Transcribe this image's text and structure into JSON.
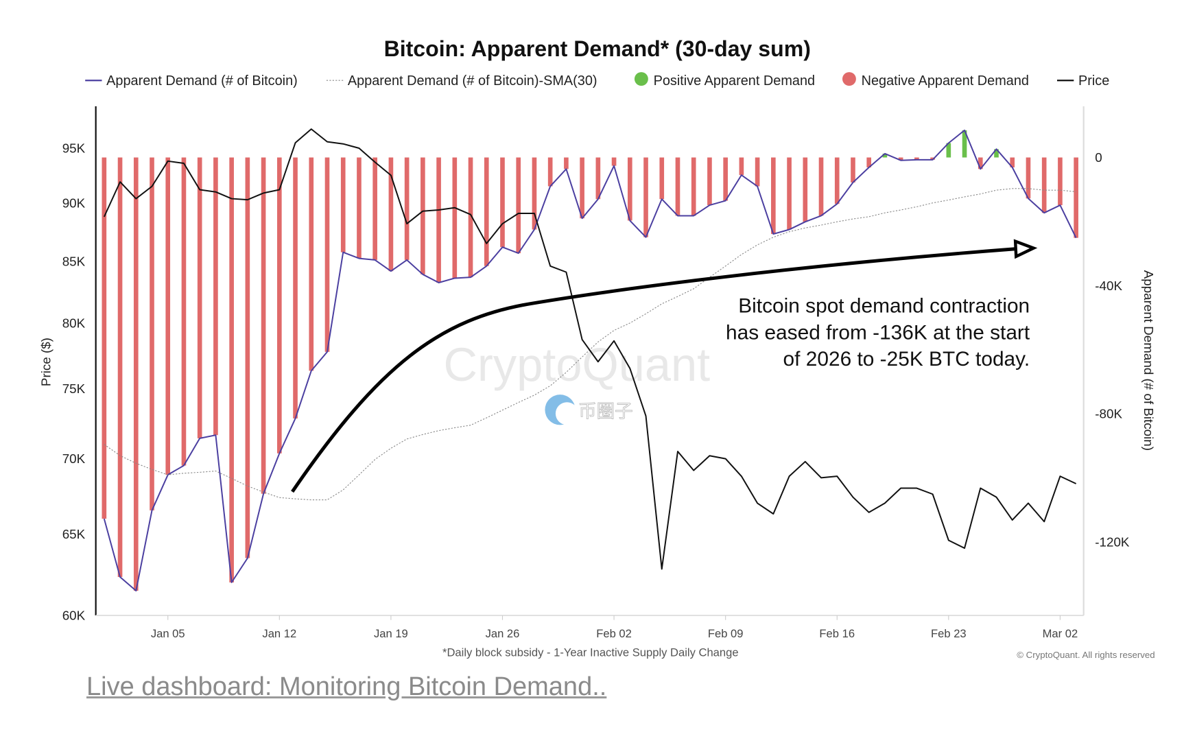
{
  "link": {
    "text": "Live dashboard: Monitoring Bitcoin Demand.."
  },
  "watermark": {
    "brand": "CryptoQuant",
    "overlay": "币圈子"
  },
  "colors": {
    "demand_line": "#4b3fa0",
    "sma": "#888888",
    "positive": "#6abf4b",
    "negative": "#e06a6a",
    "price": "#111111"
  },
  "chart_data": {
    "type": "bar+line",
    "title": "Bitcoin: Apparent Demand* (30-day sum)",
    "footnote": "*Daily block subsidy - 1-Year Inactive Supply Daily Change",
    "copyright": "© CryptoQuant. All rights reserved",
    "annotation": [
      "Bitcoin spot  demand contraction",
      "has eased from -136K at the start",
      "of 2026 to -25K BTC today."
    ],
    "legend": [
      {
        "label": "Apparent Demand (# of Bitcoin)",
        "marker": "line"
      },
      {
        "label": "Apparent Demand (# of Bitcoin)-SMA(30)",
        "marker": "dotted-line"
      },
      {
        "label": "Positive Apparent Demand",
        "marker": "dot"
      },
      {
        "label": "Negative Apparent Demand",
        "marker": "dot"
      },
      {
        "label": "Price",
        "marker": "line"
      }
    ],
    "legend_position": "top",
    "ylabel_left": "Price ($)",
    "ylabel_right": "Apparent Demand (# of Bitcoin)",
    "y_left": {
      "scale": "log",
      "range": [
        60000,
        99000
      ],
      "ticks": [
        60000,
        65000,
        70000,
        75000,
        80000,
        85000,
        90000,
        95000
      ],
      "tick_labels": [
        "60K",
        "65K",
        "70K",
        "75K",
        "80K",
        "85K",
        "90K",
        "95K"
      ]
    },
    "y_right": {
      "scale": "linear",
      "range": [
        -143000,
        16000
      ],
      "ticks": [
        0,
        -40000,
        -80000,
        -120000
      ],
      "tick_labels": [
        "0",
        "-40K",
        "-80K",
        "-120K"
      ]
    },
    "x_ticks": [
      {
        "date": "2026-01-05",
        "label": "Jan 05"
      },
      {
        "date": "2026-01-12",
        "label": "Jan 12"
      },
      {
        "date": "2026-01-19",
        "label": "Jan 19"
      },
      {
        "date": "2026-01-26",
        "label": "Jan 26"
      },
      {
        "date": "2026-02-02",
        "label": "Feb 02"
      },
      {
        "date": "2026-02-09",
        "label": "Feb 09"
      },
      {
        "date": "2026-02-16",
        "label": "Feb 16"
      },
      {
        "date": "2026-02-23",
        "label": "Feb 23"
      },
      {
        "date": "2026-03-02",
        "label": "Mar 02"
      }
    ],
    "x": [
      "2026-01-01",
      "2026-01-02",
      "2026-01-03",
      "2026-01-04",
      "2026-01-05",
      "2026-01-06",
      "2026-01-07",
      "2026-01-08",
      "2026-01-09",
      "2026-01-10",
      "2026-01-11",
      "2026-01-12",
      "2026-01-13",
      "2026-01-14",
      "2026-01-15",
      "2026-01-16",
      "2026-01-17",
      "2026-01-18",
      "2026-01-19",
      "2026-01-20",
      "2026-01-21",
      "2026-01-22",
      "2026-01-23",
      "2026-01-24",
      "2026-01-25",
      "2026-01-26",
      "2026-01-27",
      "2026-01-28",
      "2026-01-29",
      "2026-01-30",
      "2026-01-31",
      "2026-02-01",
      "2026-02-02",
      "2026-02-03",
      "2026-02-04",
      "2026-02-05",
      "2026-02-06",
      "2026-02-07",
      "2026-02-08",
      "2026-02-09",
      "2026-02-10",
      "2026-02-11",
      "2026-02-12",
      "2026-02-13",
      "2026-02-14",
      "2026-02-15",
      "2026-02-16",
      "2026-02-17",
      "2026-02-18",
      "2026-02-19",
      "2026-02-20",
      "2026-02-21",
      "2026-02-22",
      "2026-02-23",
      "2026-02-24",
      "2026-02-25",
      "2026-02-26",
      "2026-02-27",
      "2026-02-28",
      "2026-03-01",
      "2026-03-02",
      "2026-03-03"
    ],
    "series": [
      {
        "name": "Apparent Demand (# of Bitcoin)",
        "axis": "right",
        "values": [
          -112800,
          -131000,
          -135300,
          -110200,
          -99100,
          -96200,
          -87700,
          -86700,
          -132700,
          -125100,
          -105000,
          -92400,
          -81500,
          -66600,
          -60700,
          -29600,
          -31500,
          -32000,
          -35500,
          -32000,
          -36500,
          -39100,
          -37700,
          -37400,
          -33900,
          -28000,
          -29900,
          -22500,
          -9000,
          -3600,
          -19000,
          -13000,
          -2600,
          -19700,
          -24900,
          -13000,
          -18200,
          -18200,
          -14900,
          -13500,
          -5500,
          -9000,
          -23900,
          -22500,
          -20100,
          -18200,
          -14500,
          -7800,
          -3100,
          1200,
          -900,
          -700,
          -700,
          4500,
          8500,
          -3600,
          2600,
          -3100,
          -12800,
          -17300,
          -14900,
          -25100
        ]
      },
      {
        "name": "Apparent Demand (# of Bitcoin)-SMA(30)",
        "axis": "right",
        "values": [
          -89600,
          -93100,
          -95500,
          -97400,
          -99100,
          -98600,
          -98300,
          -97900,
          -100200,
          -102600,
          -104500,
          -106200,
          -106600,
          -106900,
          -106900,
          -103800,
          -99100,
          -94300,
          -90800,
          -87900,
          -86500,
          -85300,
          -84400,
          -83600,
          -81300,
          -78900,
          -76500,
          -74200,
          -71300,
          -67100,
          -62300,
          -57600,
          -54000,
          -51700,
          -48800,
          -45700,
          -43400,
          -41000,
          -37400,
          -33900,
          -30300,
          -27300,
          -24900,
          -23200,
          -22000,
          -21100,
          -20100,
          -19200,
          -18500,
          -17300,
          -16400,
          -15400,
          -14200,
          -13300,
          -12300,
          -11400,
          -10200,
          -9700,
          -9700,
          -10200,
          -10200,
          -10700
        ]
      },
      {
        "name": "Price",
        "axis": "left",
        "values": [
          88800,
          91900,
          90400,
          91500,
          93800,
          93600,
          91200,
          91000,
          90400,
          90300,
          90900,
          91200,
          95500,
          96800,
          95600,
          95400,
          95000,
          93700,
          92500,
          88200,
          89300,
          89400,
          89600,
          89000,
          86500,
          88200,
          89100,
          89100,
          84600,
          84100,
          78700,
          77000,
          78600,
          76500,
          73000,
          62800,
          70500,
          69200,
          70200,
          70000,
          68800,
          67000,
          66300,
          68800,
          69800,
          68700,
          68800,
          67400,
          66400,
          67000,
          68000,
          68000,
          67600,
          64600,
          64100,
          68000,
          67400,
          65900,
          67000,
          65800,
          68800,
          68300
        ]
      }
    ]
  }
}
